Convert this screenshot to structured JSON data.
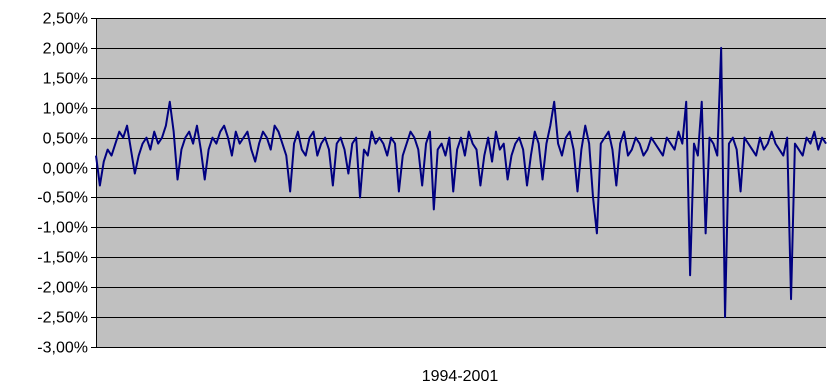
{
  "chart_data": {
    "type": "line",
    "title": "",
    "xlabel": "1994-2001",
    "ylabel": "",
    "ylim": [
      -0.03,
      0.025
    ],
    "yticks": [
      0.025,
      0.02,
      0.015,
      0.01,
      0.005,
      0.0,
      -0.005,
      -0.01,
      -0.015,
      -0.02,
      -0.025,
      -0.03
    ],
    "ytick_labels": [
      "2,50%",
      "2,00%",
      "1,50%",
      "1,00%",
      "0,50%",
      "0,00%",
      "-0,50%",
      "-1,00%",
      "-1,50%",
      "-2,00%",
      "-2,50%",
      "-3,00%"
    ],
    "grid": true,
    "legend": "none",
    "colors": {
      "plot_bg": "#c0c0c0",
      "line": "#000080",
      "grid": "#000000"
    },
    "series": [
      {
        "values": [
          0.002,
          -0.003,
          0.001,
          0.003,
          0.002,
          0.004,
          0.006,
          0.005,
          0.007,
          0.003,
          -0.001,
          0.002,
          0.004,
          0.005,
          0.003,
          0.006,
          0.004,
          0.005,
          0.007,
          0.011,
          0.006,
          -0.002,
          0.003,
          0.005,
          0.006,
          0.004,
          0.007,
          0.003,
          -0.002,
          0.003,
          0.005,
          0.004,
          0.006,
          0.007,
          0.005,
          0.002,
          0.006,
          0.004,
          0.005,
          0.006,
          0.003,
          0.001,
          0.004,
          0.006,
          0.005,
          0.003,
          0.007,
          0.006,
          0.004,
          0.002,
          -0.004,
          0.004,
          0.006,
          0.003,
          0.002,
          0.005,
          0.006,
          0.002,
          0.004,
          0.005,
          0.003,
          -0.003,
          0.004,
          0.005,
          0.003,
          -0.001,
          0.004,
          0.005,
          -0.005,
          0.003,
          0.002,
          0.006,
          0.004,
          0.005,
          0.004,
          0.002,
          0.005,
          0.004,
          -0.004,
          0.002,
          0.004,
          0.006,
          0.005,
          0.003,
          -0.003,
          0.004,
          0.006,
          -0.007,
          0.003,
          0.004,
          0.002,
          0.005,
          -0.004,
          0.003,
          0.005,
          0.002,
          0.006,
          0.004,
          0.003,
          -0.003,
          0.002,
          0.005,
          0.001,
          0.006,
          0.003,
          0.004,
          -0.002,
          0.002,
          0.004,
          0.005,
          0.003,
          -0.003,
          0.002,
          0.006,
          0.004,
          -0.002,
          0.004,
          0.007,
          0.011,
          0.004,
          0.002,
          0.005,
          0.006,
          0.003,
          -0.004,
          0.003,
          0.007,
          0.004,
          -0.005,
          -0.011,
          0.004,
          0.005,
          0.006,
          0.003,
          -0.003,
          0.004,
          0.006,
          0.002,
          0.003,
          0.005,
          0.004,
          0.002,
          0.003,
          0.005,
          0.004,
          0.003,
          0.002,
          0.005,
          0.004,
          0.003,
          0.006,
          0.004,
          0.011,
          -0.018,
          0.004,
          0.002,
          0.011,
          -0.011,
          0.005,
          0.004,
          0.002,
          0.02,
          -0.025,
          0.004,
          0.005,
          0.003,
          -0.004,
          0.005,
          0.004,
          0.003,
          0.002,
          0.005,
          0.003,
          0.004,
          0.006,
          0.004,
          0.003,
          0.002,
          0.005,
          -0.022,
          0.004,
          0.003,
          0.002,
          0.005,
          0.004,
          0.006,
          0.003,
          0.005,
          0.004
        ]
      }
    ]
  }
}
